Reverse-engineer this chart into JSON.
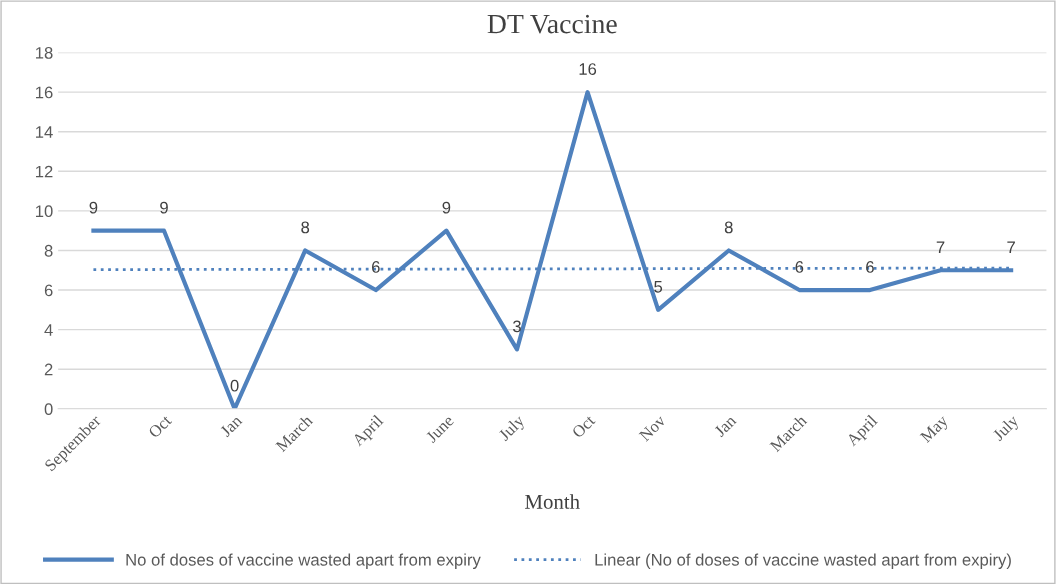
{
  "chart_data": {
    "type": "line",
    "title": "DT Vaccine",
    "xlabel": "Month",
    "categories": [
      "September",
      "Oct",
      "Jan",
      "March",
      "April",
      "June",
      "July",
      "Oct",
      "Nov",
      "Jan",
      "March",
      "April",
      "May",
      "July"
    ],
    "series": [
      {
        "name": "No of doses of vaccine wasted apart from expiry",
        "color": "#4f81bd",
        "line_style": "solid",
        "values": [
          9,
          9,
          0,
          8,
          6,
          9,
          3,
          16,
          5,
          8,
          6,
          6,
          7,
          7
        ],
        "value_labels": [
          "9",
          "9",
          "0",
          "8",
          "6",
          "9",
          "3",
          "16",
          "5",
          "8",
          "6",
          "6",
          "7",
          "7"
        ]
      },
      {
        "name": "Linear (No of doses of vaccine wasted apart from expiry)",
        "color": "#4f81bd",
        "line_style": "dotted",
        "values": [
          7.03,
          7.04,
          7.04,
          7.05,
          7.06,
          7.06,
          7.07,
          7.07,
          7.08,
          7.09,
          7.09,
          7.1,
          7.11,
          7.11
        ]
      }
    ],
    "ylim": [
      0,
      18
    ],
    "yticks": [
      0,
      2,
      4,
      6,
      8,
      10,
      12,
      14,
      16,
      18
    ],
    "grid": "y",
    "legend": "bottom",
    "marker": "none"
  }
}
